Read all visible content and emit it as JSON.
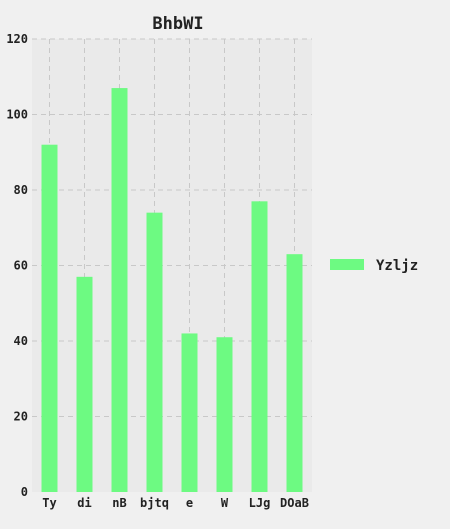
{
  "chart_data": {
    "type": "bar",
    "title": "BhbWI",
    "xlabel": "",
    "ylabel": "",
    "categories": [
      "Ty",
      "di",
      "nB",
      "bjtq",
      "e",
      "W",
      "LJg",
      "DOaB"
    ],
    "series": [
      {
        "name": "Yzljz",
        "values": [
          92,
          57,
          107,
          74,
          42,
          41,
          77,
          63
        ]
      }
    ],
    "ylim": [
      0,
      120
    ],
    "yticks": [
      0,
      20,
      40,
      60,
      80,
      100,
      120
    ],
    "grid": true,
    "legend_position": "right",
    "colors": {
      "bar": "#6dfa82",
      "background": "#f0f0f0",
      "plot_background": "#eaeaea",
      "grid": "#c8c8c8",
      "text": "#222222"
    }
  }
}
